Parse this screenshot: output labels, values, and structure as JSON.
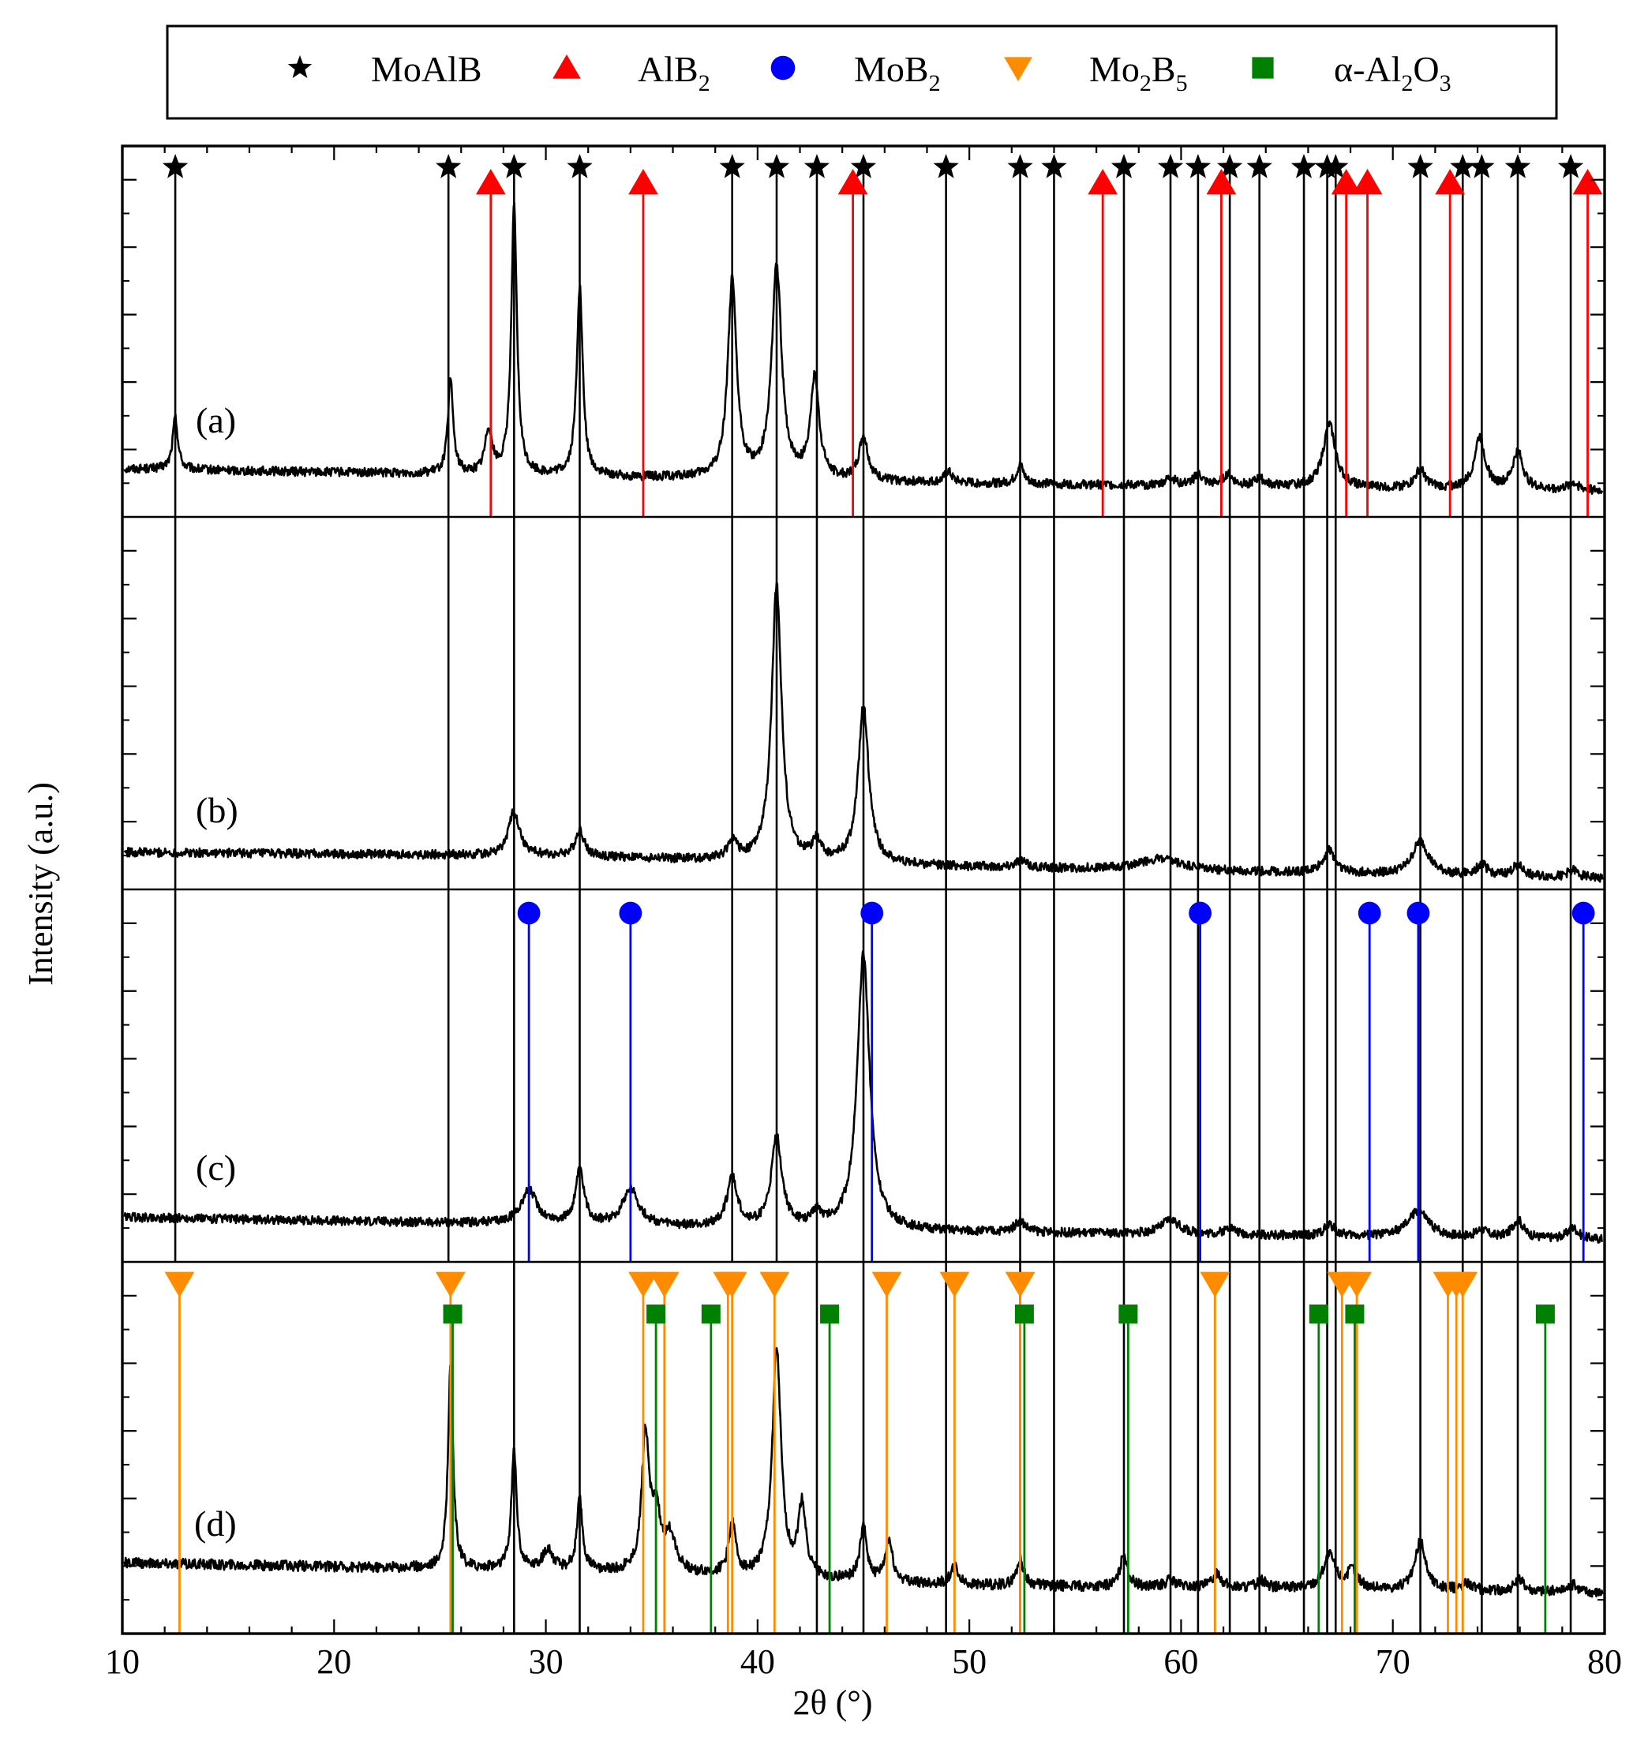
{
  "chart_data": {
    "type": "line",
    "xlabel": "2θ (°)",
    "ylabel": "Intensity (a.u.)",
    "xlim": [
      10,
      80
    ],
    "xticks": [
      10,
      20,
      30,
      40,
      50,
      60,
      70,
      80
    ],
    "xtick_labels": [
      "10",
      "20",
      "30",
      "40",
      "50",
      "60",
      "70",
      "80"
    ],
    "grid": false,
    "legend_position": "top",
    "legend": [
      {
        "id": "moalb",
        "base": "MoAlB",
        "sub": "",
        "sub2": "",
        "symbol": "star",
        "color": "#000000"
      },
      {
        "id": "alb2",
        "base": "AlB",
        "sub": "2",
        "sub2": "",
        "symbol": "triangle-up",
        "color": "#ff0000"
      },
      {
        "id": "mob2",
        "base": "MoB",
        "sub": "2",
        "sub2": "",
        "symbol": "circle",
        "color": "#0000ff"
      },
      {
        "id": "mo2b5",
        "base": "Mo",
        "sub": "2",
        "mid": "B",
        "sub2": "5",
        "symbol": "triangle-down",
        "color": "#ff8c00"
      },
      {
        "id": "al2o3",
        "base": "α-Al",
        "sub": "2",
        "mid": "O",
        "sub2": "3",
        "symbol": "square",
        "color": "#008000"
      }
    ],
    "reference_positions": {
      "moalb": [
        12.5,
        25.4,
        28.5,
        31.6,
        38.8,
        40.9,
        42.8,
        45.0,
        48.9,
        52.4,
        54.0,
        57.3,
        59.5,
        60.8,
        62.3,
        63.7,
        65.8,
        66.9,
        67.3,
        71.3,
        73.3,
        74.2,
        75.9,
        78.4
      ],
      "alb2": [
        27.4,
        34.6,
        44.5,
        56.3,
        61.9,
        67.8,
        68.8,
        72.7,
        79.2
      ],
      "mob2": [
        29.2,
        34.0,
        45.4,
        60.9,
        68.9,
        71.2,
        79.0
      ],
      "mo2b5": [
        12.7,
        25.5,
        34.6,
        35.6,
        38.6,
        38.8,
        40.8,
        46.1,
        49.3,
        52.4,
        61.6,
        67.6,
        68.3,
        72.6,
        73.0,
        73.3
      ],
      "al2o3": [
        25.6,
        35.2,
        37.8,
        43.4,
        52.6,
        57.5,
        66.5,
        68.2,
        77.2
      ]
    },
    "panels": [
      {
        "label": "(a)",
        "baseline": [
          [
            10,
            0.13
          ],
          [
            30,
            0.11
          ],
          [
            50,
            0.09
          ],
          [
            80,
            0.07
          ]
        ],
        "noise": 0.012,
        "peaks": [
          [
            12.5,
            0.14,
            0.15
          ],
          [
            25.5,
            0.25,
            0.15
          ],
          [
            27.3,
            0.12,
            0.2
          ],
          [
            28.5,
            0.72,
            0.16
          ],
          [
            31.6,
            0.51,
            0.17
          ],
          [
            38.8,
            0.53,
            0.25
          ],
          [
            40.9,
            0.57,
            0.28
          ],
          [
            42.7,
            0.27,
            0.25
          ],
          [
            45.0,
            0.12,
            0.25
          ],
          [
            49.0,
            0.03,
            0.2
          ],
          [
            52.4,
            0.05,
            0.2
          ],
          [
            59.5,
            0.02,
            0.3
          ],
          [
            60.8,
            0.03,
            0.25
          ],
          [
            62.2,
            0.03,
            0.3
          ],
          [
            63.7,
            0.02,
            0.3
          ],
          [
            67.0,
            0.17,
            0.35
          ],
          [
            71.3,
            0.05,
            0.3
          ],
          [
            74.1,
            0.14,
            0.3
          ],
          [
            75.9,
            0.1,
            0.3
          ],
          [
            78.5,
            0.02,
            0.3
          ]
        ]
      },
      {
        "label": "(b)",
        "baseline": [
          [
            10,
            0.1
          ],
          [
            30,
            0.09
          ],
          [
            50,
            0.06
          ],
          [
            80,
            0.03
          ]
        ],
        "noise": 0.012,
        "peaks": [
          [
            28.5,
            0.12,
            0.3
          ],
          [
            31.6,
            0.07,
            0.25
          ],
          [
            38.8,
            0.05,
            0.25
          ],
          [
            40.9,
            0.74,
            0.28
          ],
          [
            42.8,
            0.05,
            0.25
          ],
          [
            45.0,
            0.42,
            0.3
          ],
          [
            52.4,
            0.02,
            0.3
          ],
          [
            59.0,
            0.03,
            1.2
          ],
          [
            67.0,
            0.06,
            0.35
          ],
          [
            71.3,
            0.09,
            0.45
          ],
          [
            74.2,
            0.03,
            0.3
          ],
          [
            75.9,
            0.03,
            0.3
          ],
          [
            78.5,
            0.02,
            0.3
          ]
        ]
      },
      {
        "label": "(c)",
        "baseline": [
          [
            10,
            0.12
          ],
          [
            30,
            0.1
          ],
          [
            50,
            0.08
          ],
          [
            80,
            0.06
          ]
        ],
        "noise": 0.012,
        "peaks": [
          [
            29.2,
            0.09,
            0.45
          ],
          [
            31.6,
            0.14,
            0.25
          ],
          [
            34.0,
            0.1,
            0.45
          ],
          [
            38.8,
            0.13,
            0.3
          ],
          [
            40.9,
            0.24,
            0.3
          ],
          [
            42.8,
            0.04,
            0.25
          ],
          [
            45.0,
            0.74,
            0.35
          ],
          [
            52.4,
            0.03,
            0.3
          ],
          [
            59.5,
            0.04,
            0.5
          ],
          [
            62.3,
            0.02,
            0.3
          ],
          [
            67.0,
            0.03,
            0.3
          ],
          [
            71.2,
            0.07,
            0.6
          ],
          [
            74.2,
            0.02,
            0.3
          ],
          [
            75.9,
            0.05,
            0.3
          ],
          [
            78.5,
            0.03,
            0.3
          ]
        ]
      },
      {
        "label": "(d)",
        "baseline": [
          [
            10,
            0.19
          ],
          [
            30,
            0.17
          ],
          [
            50,
            0.13
          ],
          [
            80,
            0.11
          ]
        ],
        "noise": 0.014,
        "peaks": [
          [
            25.5,
            0.56,
            0.14
          ],
          [
            28.5,
            0.32,
            0.15
          ],
          [
            30.1,
            0.05,
            0.3
          ],
          [
            31.6,
            0.19,
            0.16
          ],
          [
            34.7,
            0.36,
            0.2
          ],
          [
            35.2,
            0.15,
            0.3
          ],
          [
            35.9,
            0.09,
            0.3
          ],
          [
            38.8,
            0.14,
            0.2
          ],
          [
            40.9,
            0.61,
            0.25
          ],
          [
            42.1,
            0.19,
            0.22
          ],
          [
            45.0,
            0.14,
            0.2
          ],
          [
            46.2,
            0.11,
            0.2
          ],
          [
            49.3,
            0.05,
            0.2
          ],
          [
            52.4,
            0.07,
            0.2
          ],
          [
            57.3,
            0.09,
            0.2
          ],
          [
            59.5,
            0.02,
            0.3
          ],
          [
            61.7,
            0.04,
            0.25
          ],
          [
            63.8,
            0.02,
            0.3
          ],
          [
            67.0,
            0.09,
            0.35
          ],
          [
            68.1,
            0.05,
            0.3
          ],
          [
            71.3,
            0.13,
            0.3
          ],
          [
            73.5,
            0.02,
            0.3
          ],
          [
            76.0,
            0.03,
            0.3
          ],
          [
            78.5,
            0.02,
            0.3
          ]
        ]
      }
    ]
  }
}
